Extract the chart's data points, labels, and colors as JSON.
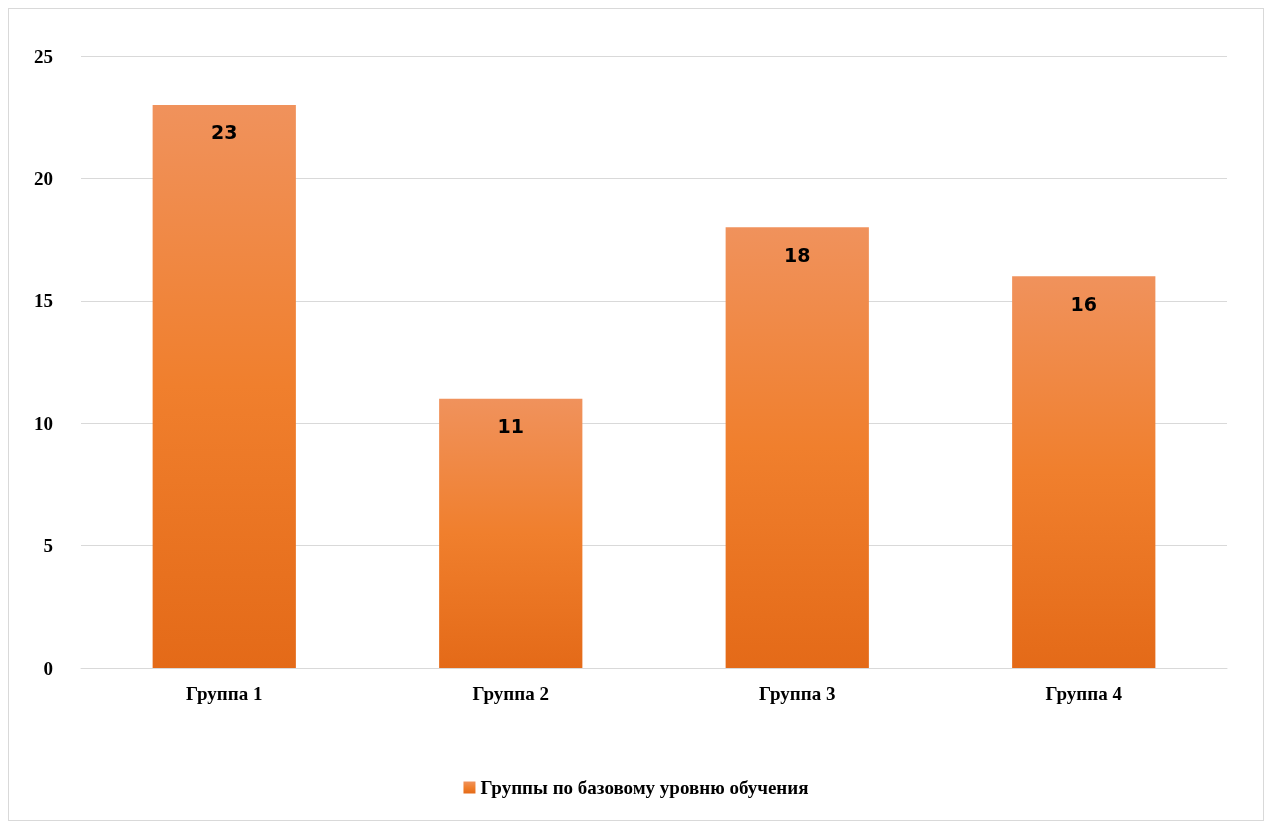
{
  "chart_data": {
    "type": "bar",
    "categories": [
      "Группа 1",
      "Группа 2",
      "Группа 3",
      "Группа 4"
    ],
    "series": [
      {
        "name": "Группы по базовому уровню обучения",
        "color": "#f07f2d",
        "values": [
          23,
          11,
          18,
          16
        ]
      }
    ],
    "ylim": [
      0,
      25
    ],
    "yticks": [
      0,
      5,
      10,
      15,
      20,
      25
    ],
    "grid": "y",
    "legend": "bottom",
    "data_labels": true
  }
}
